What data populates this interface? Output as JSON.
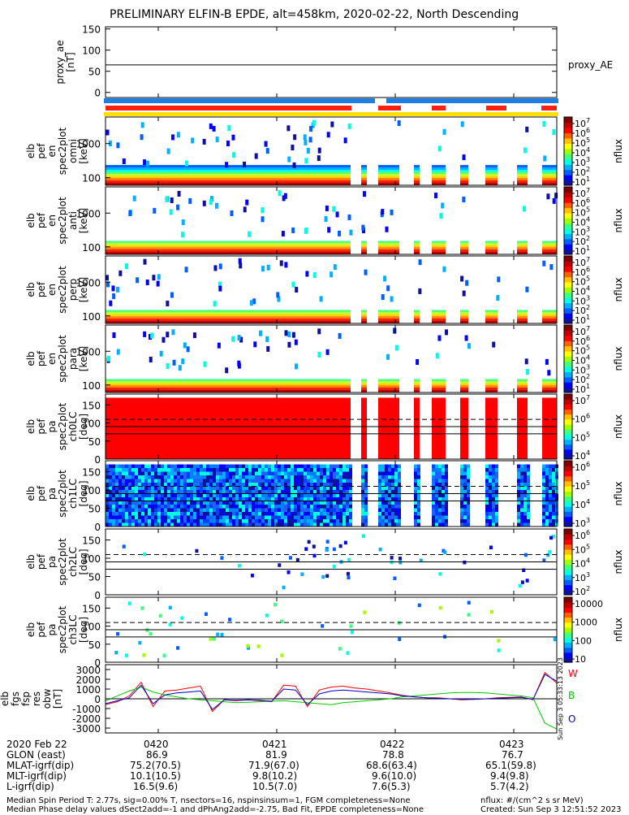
{
  "title": "PRELIMINARY ELFIN-B EPDE, alt=458km, 2020-02-22, North Descending",
  "chart_data": {
    "type": "heatmap",
    "panels": [
      {
        "id": "proxy_ae",
        "ylabel": [
          "proxy_ae",
          "[nT]"
        ],
        "yticks": [
          "150",
          "100",
          "50",
          "0"
        ],
        "ylim": [
          -12,
          155
        ],
        "line_value": 65,
        "side_label": "proxy_AE"
      },
      {
        "id": "en_omni",
        "ylabel": [
          "elb",
          "pef",
          "en",
          "spec2plot",
          "omni",
          "[keV]"
        ],
        "yticks": [
          "1000",
          "100"
        ],
        "cb_ticks": [
          "10^7",
          "10^6",
          "10^5",
          "10^4",
          "10^3",
          "10^2",
          "10^1"
        ],
        "cb_label": "nflux",
        "scale": "log"
      },
      {
        "id": "en_anti",
        "ylabel": [
          "elb",
          "pef",
          "en",
          "spec2plot",
          "anti",
          "[keV]"
        ],
        "yticks": [
          "1000",
          "100"
        ],
        "cb_ticks": [
          "10^7",
          "10^6",
          "10^5",
          "10^4",
          "10^3",
          "10^2",
          "10^1"
        ],
        "cb_label": "nflux",
        "scale": "log"
      },
      {
        "id": "en_perp",
        "ylabel": [
          "elb",
          "pef",
          "en",
          "spec2plot",
          "perp",
          "[keV]"
        ],
        "yticks": [
          "1000",
          "100"
        ],
        "cb_ticks": [
          "10^7",
          "10^6",
          "10^5",
          "10^4",
          "10^3",
          "10^2",
          "10^1"
        ],
        "cb_label": "nflux",
        "scale": "log"
      },
      {
        "id": "en_para",
        "ylabel": [
          "elb",
          "pef",
          "en",
          "spec2plot",
          "para",
          "[keV]"
        ],
        "yticks": [
          "1000",
          "100"
        ],
        "cb_ticks": [
          "10^7",
          "10^6",
          "10^5",
          "10^4",
          "10^3",
          "10^2",
          "10^1"
        ],
        "cb_label": "nflux",
        "scale": "log"
      },
      {
        "id": "pa_ch0",
        "ylabel": [
          "elb",
          "pef",
          "pa",
          "spec2plot",
          "ch0LC",
          "[deg]"
        ],
        "yticks": [
          "150",
          "100",
          "50",
          "0"
        ],
        "ylim": [
          0,
          180
        ],
        "cb_ticks": [
          "10^7",
          "10^6",
          "10^5",
          "10^4"
        ],
        "cb_label": "nflux",
        "solid_lines": [
          90,
          70
        ],
        "dashed_lines": [
          110
        ]
      },
      {
        "id": "pa_ch1",
        "ylabel": [
          "elb",
          "pef",
          "pa",
          "spec2plot",
          "ch1LC",
          "[deg]"
        ],
        "yticks": [
          "150",
          "100",
          "50",
          "0"
        ],
        "ylim": [
          0,
          180
        ],
        "cb_ticks": [
          "10^6",
          "10^5",
          "10^4",
          "10^3"
        ],
        "cb_label": "nflux",
        "solid_lines": [
          90,
          70
        ],
        "dashed_lines": [
          110
        ]
      },
      {
        "id": "pa_ch2",
        "ylabel": [
          "elb",
          "pef",
          "pa",
          "spec2plot",
          "ch2LC",
          "[deg]"
        ],
        "yticks": [
          "150",
          "100",
          "50",
          "0"
        ],
        "ylim": [
          0,
          180
        ],
        "cb_ticks": [
          "10^6",
          "10^5",
          "10^4",
          "10^3",
          "10^2"
        ],
        "cb_label": "nflux",
        "solid_lines": [
          90,
          70
        ],
        "dashed_lines": [
          110
        ]
      },
      {
        "id": "pa_ch3",
        "ylabel": [
          "elb",
          "pef",
          "pa",
          "spec2plot",
          "ch3LC",
          "[deg]"
        ],
        "yticks": [
          "150",
          "100",
          "50",
          "0"
        ],
        "ylim": [
          0,
          180
        ],
        "cb_ticks": [
          "10000",
          "1000",
          "100",
          "10"
        ],
        "cb_label": "nflux",
        "solid_lines": [
          90,
          70
        ],
        "dashed_lines": [
          110
        ]
      },
      {
        "id": "fgs",
        "ylabel": [
          "elb",
          "fgs",
          "fsp",
          "res",
          "obw",
          "[nT]"
        ],
        "yticks": [
          "3000",
          "2000",
          "1000",
          "0",
          "-1000",
          "-2000",
          "-3000"
        ],
        "ylim": [
          -3500,
          3500
        ],
        "series": [
          {
            "name": "W",
            "color": "#ff0000",
            "values": [
              -600,
              -300,
              300,
              1700,
              -800,
              800,
              900,
              1100,
              1300,
              -1300,
              -100,
              -200,
              -100,
              -200,
              -300,
              1400,
              1300,
              -800,
              900,
              1200,
              1300,
              1100,
              1000,
              800,
              600,
              350,
              200,
              100,
              100,
              0,
              -100,
              -50,
              0,
              100,
              150,
              200,
              -100,
              2700,
              1600
            ]
          },
          {
            "name": "B",
            "color": "#00cc00",
            "values": [
              -200,
              300,
              800,
              1200,
              700,
              400,
              200,
              0,
              -100,
              -200,
              -300,
              -400,
              -350,
              -300,
              -250,
              -200,
              -300,
              -400,
              -500,
              -600,
              -400,
              -300,
              -200,
              -100,
              0,
              200,
              300,
              400,
              500,
              600,
              650,
              650,
              600,
              500,
              400,
              300,
              100,
              -2500,
              -3100
            ]
          },
          {
            "name": "O",
            "color": "#0000cc",
            "values": [
              -500,
              -200,
              100,
              1400,
              -500,
              400,
              600,
              700,
              800,
              -1100,
              -100,
              -150,
              -100,
              -150,
              -250,
              1000,
              900,
              -600,
              500,
              800,
              900,
              800,
              700,
              600,
              500,
              300,
              200,
              100,
              50,
              0,
              -50,
              -50,
              0,
              50,
              100,
              150,
              -50,
              2500,
              1800
            ]
          }
        ],
        "watermark": "Sun Sep  3 05:33:13 2023"
      }
    ],
    "x_ticks": [
      "0420",
      "0421",
      "0422",
      "0423"
    ],
    "ephemeris": [
      {
        "label": "2020 Feb 22",
        "values": [
          "0420",
          "0421",
          "0422",
          "0423"
        ]
      },
      {
        "label": "GLON (east)",
        "values": [
          "86.9",
          "81.9",
          "78.8",
          "76.7"
        ]
      },
      {
        "label": "MLAT-igrf(dip)",
        "values": [
          "75.2(70.5)",
          "71.9(67.0)",
          "68.6(63.4)",
          "65.1(59.8)"
        ]
      },
      {
        "label": "MLT-igrf(dip)",
        "values": [
          "10.1(10.5)",
          "9.8(10.2)",
          "9.6(10.0)",
          "9.4(9.8)"
        ]
      },
      {
        "label": "L-igrf(dip)",
        "values": [
          "16.5(9.6)",
          "10.5(7.0)",
          "7.6(5.3)",
          "5.7(4.2)"
        ]
      }
    ]
  },
  "footer": {
    "left1": "Median Spin Period T: 2.77s, sig=0.00% T, nsectors=16, nspinsinsum=1, FGM completeness=None",
    "left2": "Median Phase delay values dSect2add=-1 and dPhAng2add=-2.75, Bad Fit, EPDE completeness=None",
    "right1": "nflux: #/(cm^2 s sr MeV)",
    "right2": "Created: Sun Sep  3 12:51:52 2023"
  },
  "colors": {
    "bar_blue": "#1e7fe0",
    "bar_red": "#ff2010",
    "bar_yellow": "#ffe000"
  }
}
